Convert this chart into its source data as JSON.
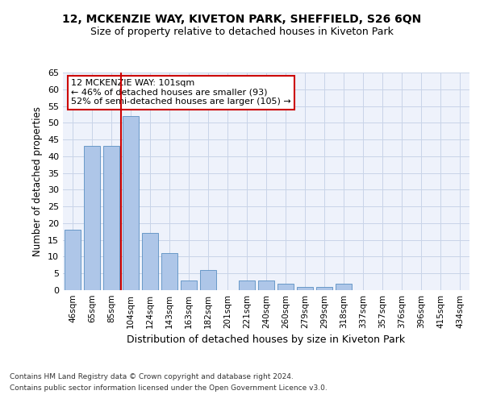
{
  "title": "12, MCKENZIE WAY, KIVETON PARK, SHEFFIELD, S26 6QN",
  "subtitle": "Size of property relative to detached houses in Kiveton Park",
  "xlabel": "Distribution of detached houses by size in Kiveton Park",
  "ylabel": "Number of detached properties",
  "categories": [
    "46sqm",
    "65sqm",
    "85sqm",
    "104sqm",
    "124sqm",
    "143sqm",
    "163sqm",
    "182sqm",
    "201sqm",
    "221sqm",
    "240sqm",
    "260sqm",
    "279sqm",
    "299sqm",
    "318sqm",
    "337sqm",
    "357sqm",
    "376sqm",
    "396sqm",
    "415sqm",
    "434sqm"
  ],
  "values": [
    18,
    43,
    43,
    52,
    17,
    11,
    3,
    6,
    0,
    3,
    3,
    2,
    1,
    1,
    2,
    0,
    0,
    0,
    0,
    0,
    0
  ],
  "bar_color": "#aec6e8",
  "bar_edge_color": "#5a8fc2",
  "vline_x": 2.5,
  "vline_color": "#cc0000",
  "annotation_text": "12 MCKENZIE WAY: 101sqm\n← 46% of detached houses are smaller (93)\n52% of semi-detached houses are larger (105) →",
  "annotation_box_color": "#ffffff",
  "annotation_box_edge": "#cc0000",
  "ylim": [
    0,
    65
  ],
  "yticks": [
    0,
    5,
    10,
    15,
    20,
    25,
    30,
    35,
    40,
    45,
    50,
    55,
    60,
    65
  ],
  "footer1": "Contains HM Land Registry data © Crown copyright and database right 2024.",
  "footer2": "Contains public sector information licensed under the Open Government Licence v3.0.",
  "bg_color": "#eef2fb",
  "grid_color": "#c8d4e8"
}
